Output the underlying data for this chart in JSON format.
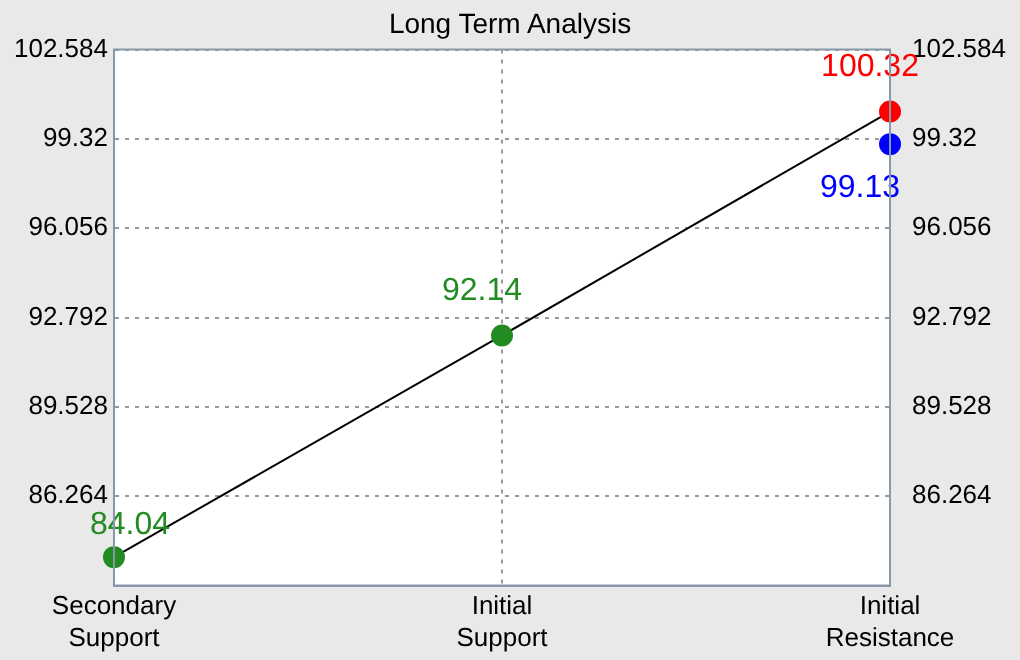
{
  "chart_data": {
    "type": "line",
    "title": "Long Term Analysis",
    "categories": [
      "Secondary Support",
      "Initial Support",
      "Initial Resistance"
    ],
    "series": [
      {
        "color": "#000000",
        "colors": [
          "#228b22",
          "#228b22",
          "#ff0000"
        ],
        "values": [
          84.04,
          92.14,
          100.32
        ]
      },
      {
        "type": "scatter",
        "color": "#0000ff",
        "x": [
          "Initial Resistance"
        ],
        "values": [
          99.13
        ]
      }
    ],
    "ylim": [
      83,
      102.584
    ],
    "yticks": [
      86.264,
      89.528,
      92.792,
      96.056,
      99.32,
      102.584
    ],
    "y2lim": [
      83,
      102.584
    ],
    "y2ticks": [
      86.264,
      89.528,
      92.792,
      96.056,
      99.32,
      102.584
    ],
    "grid": true,
    "legend": false,
    "marker": "circle",
    "line_style": "solid",
    "data_labels": true
  }
}
